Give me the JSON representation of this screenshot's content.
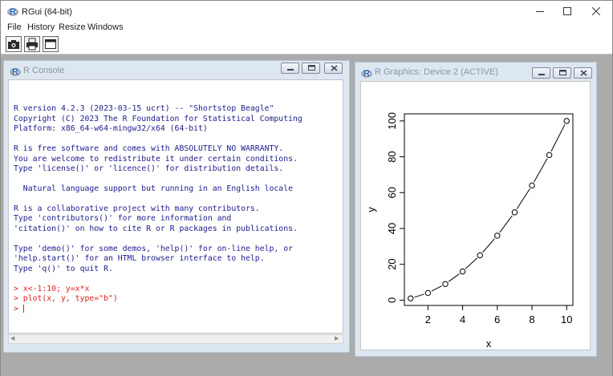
{
  "app": {
    "title": "RGui (64-bit)"
  },
  "menu": [
    "File",
    "History",
    "Resize",
    "Windows"
  ],
  "toolbar": {
    "buttons": [
      {
        "icon": "open-script-icon"
      },
      {
        "icon": "print-icon"
      },
      {
        "icon": "window-icon"
      }
    ]
  },
  "console": {
    "title": "R Console",
    "lines": [
      {
        "type": "out",
        "text": ""
      },
      {
        "type": "out",
        "text": "R version 4.2.3 (2023-03-15 ucrt) -- \"Shortstop Beagle\""
      },
      {
        "type": "out",
        "text": "Copyright (C) 2023 The R Foundation for Statistical Computing"
      },
      {
        "type": "out",
        "text": "Platform: x86_64-w64-mingw32/x64 (64-bit)"
      },
      {
        "type": "out",
        "text": ""
      },
      {
        "type": "out",
        "text": "R is free software and comes with ABSOLUTELY NO WARRANTY."
      },
      {
        "type": "out",
        "text": "You are welcome to redistribute it under certain conditions."
      },
      {
        "type": "out",
        "text": "Type 'license()' or 'licence()' for distribution details."
      },
      {
        "type": "out",
        "text": ""
      },
      {
        "type": "out",
        "text": "  Natural language support but running in an English locale"
      },
      {
        "type": "out",
        "text": ""
      },
      {
        "type": "out",
        "text": "R is a collaborative project with many contributors."
      },
      {
        "type": "out",
        "text": "Type 'contributors()' for more information and"
      },
      {
        "type": "out",
        "text": "'citation()' on how to cite R or R packages in publications."
      },
      {
        "type": "out",
        "text": ""
      },
      {
        "type": "out",
        "text": "Type 'demo()' for some demos, 'help()' for on-line help, or"
      },
      {
        "type": "out",
        "text": "'help.start()' for an HTML browser interface to help."
      },
      {
        "type": "out",
        "text": "Type 'q()' to quit R."
      },
      {
        "type": "out",
        "text": ""
      },
      {
        "type": "cmd",
        "text": "> x<-1:10; y=x*x"
      },
      {
        "type": "cmd",
        "text": "> plot(x, y, type=\"b\")"
      },
      {
        "type": "prompt",
        "text": "> "
      }
    ]
  },
  "graphics": {
    "title": "R Graphics: Device 2 (ACTIVE)"
  },
  "chart_data": {
    "type": "line",
    "markers": "open-circle",
    "x": [
      1,
      2,
      3,
      4,
      5,
      6,
      7,
      8,
      9,
      10
    ],
    "y": [
      1,
      4,
      9,
      16,
      25,
      36,
      49,
      64,
      81,
      100
    ],
    "xlabel": "x",
    "ylabel": "y",
    "xticks": [
      "2",
      "4",
      "6",
      "8",
      "10"
    ],
    "yticks": [
      "0",
      "20",
      "40",
      "60",
      "80",
      "100"
    ],
    "xlim": [
      0.64,
      10.36
    ],
    "ylim": [
      -2.96,
      103.96
    ],
    "grid": false
  },
  "colors": {
    "console_output": "#1c1c8e",
    "console_input": "#e02020",
    "mdi_background": "#ababab",
    "child_frame": "#dde7f1"
  }
}
